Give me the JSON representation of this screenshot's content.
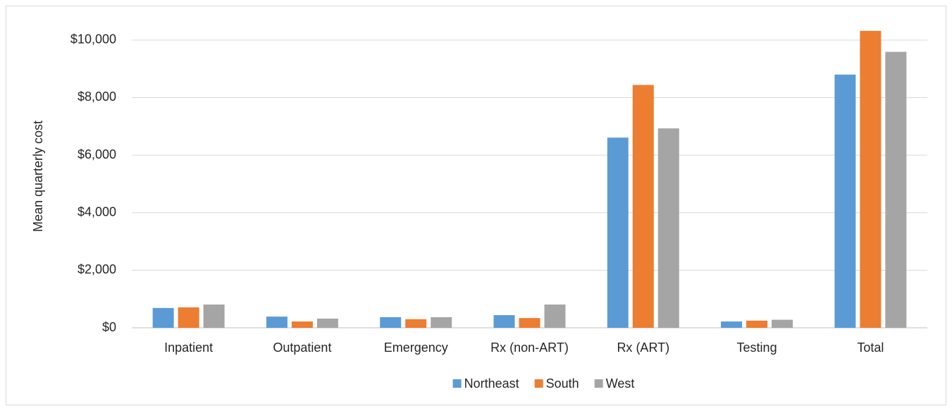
{
  "chart_data": {
    "type": "bar",
    "y_label": "Mean quarterly cost",
    "categories": [
      "Inpatient",
      "Outpatient",
      "Emergency",
      "Rx (non-ART)",
      "Rx (ART)",
      "Testing",
      "Total"
    ],
    "series": [
      {
        "name": "Northeast",
        "color": "#5b9bd5",
        "values": [
          690,
          390,
          370,
          440,
          6610,
          220,
          8800
        ]
      },
      {
        "name": "South",
        "color": "#ed7d31",
        "values": [
          710,
          220,
          300,
          340,
          8440,
          250,
          10320
        ]
      },
      {
        "name": "West",
        "color": "#a5a5a5",
        "values": [
          810,
          320,
          370,
          810,
          6930,
          280,
          9590
        ]
      }
    ],
    "ylim": [
      0,
      11000
    ],
    "yticks": [
      {
        "value": 0,
        "label": "$0"
      },
      {
        "value": 2000,
        "label": "$2,000"
      },
      {
        "value": 4000,
        "label": "$4,000"
      },
      {
        "value": 6000,
        "label": "$6,000"
      },
      {
        "value": 8000,
        "label": "$8,000"
      },
      {
        "value": 10000,
        "label": "$10,000"
      }
    ],
    "grid": true,
    "legend": "bottom"
  }
}
